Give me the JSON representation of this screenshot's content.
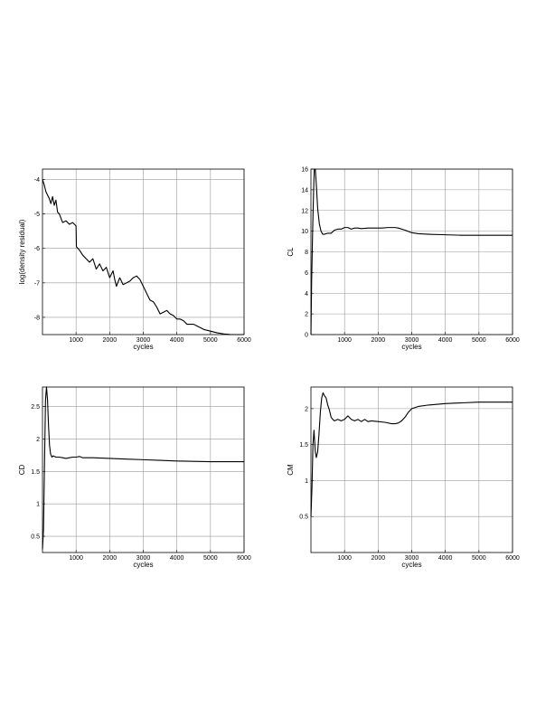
{
  "chart_data": [
    {
      "type": "line",
      "xlabel": "cycles",
      "ylabel": "log(density residual)",
      "xlim": [
        0,
        6000
      ],
      "ylim": [
        -8.5,
        -3.7
      ],
      "xticks": [
        1000,
        2000,
        3000,
        4000,
        5000,
        6000
      ],
      "yticks": [
        -8,
        -7,
        -6,
        -5,
        -4
      ],
      "grid": true,
      "series": [
        {
          "x": [
            0,
            50,
            100,
            150,
            200,
            250,
            300,
            350,
            400,
            450,
            500,
            600,
            700,
            800,
            900,
            1000,
            1010,
            1100,
            1200,
            1300,
            1400,
            1500,
            1600,
            1700,
            1800,
            1900,
            2000,
            2100,
            2150,
            2200,
            2300,
            2400,
            2500,
            2600,
            2700,
            2800,
            2900,
            3000,
            3100,
            3200,
            3300,
            3400,
            3500,
            3600,
            3700,
            3800,
            3900,
            4000,
            4100,
            4200,
            4300,
            4400,
            4500,
            4600,
            4800,
            5000,
            5200,
            5400,
            5600,
            5800,
            6000
          ],
          "values": [
            -4.0,
            -4.15,
            -4.35,
            -4.45,
            -4.55,
            -4.7,
            -4.5,
            -4.75,
            -4.6,
            -4.95,
            -5.0,
            -5.25,
            -5.2,
            -5.3,
            -5.25,
            -5.35,
            -5.95,
            -6.05,
            -6.2,
            -6.3,
            -6.4,
            -6.3,
            -6.6,
            -6.45,
            -6.65,
            -6.55,
            -6.85,
            -6.65,
            -6.9,
            -7.1,
            -6.85,
            -7.05,
            -7.0,
            -6.95,
            -6.85,
            -6.8,
            -6.9,
            -7.1,
            -7.3,
            -7.5,
            -7.55,
            -7.7,
            -7.9,
            -7.85,
            -7.8,
            -7.9,
            -7.95,
            -8.05,
            -8.05,
            -8.1,
            -8.2,
            -8.2,
            -8.2,
            -8.25,
            -8.35,
            -8.4,
            -8.45,
            -8.48,
            -8.5,
            -8.52,
            -8.55
          ]
        }
      ]
    },
    {
      "type": "line",
      "xlabel": "cycles",
      "ylabel": "CL",
      "xlim": [
        0,
        6000
      ],
      "ylim": [
        0,
        16
      ],
      "xticks": [
        1000,
        2000,
        3000,
        4000,
        5000,
        6000
      ],
      "yticks": [
        0,
        2,
        4,
        6,
        8,
        10,
        12,
        14,
        16
      ],
      "grid": true,
      "series": [
        {
          "x": [
            0,
            20,
            50,
            80,
            100,
            130,
            160,
            200,
            250,
            300,
            350,
            400,
            500,
            600,
            700,
            800,
            900,
            1000,
            1100,
            1200,
            1300,
            1400,
            1500,
            1700,
            1900,
            2100,
            2300,
            2500,
            2600,
            2800,
            3000,
            3200,
            3500,
            4000,
            4500,
            5000,
            5500,
            6000
          ],
          "values": [
            0,
            5,
            10,
            14,
            16,
            16.5,
            14.5,
            12.2,
            10.7,
            10.0,
            9.7,
            9.7,
            9.8,
            9.8,
            10.1,
            10.2,
            10.2,
            10.35,
            10.35,
            10.2,
            10.3,
            10.3,
            10.25,
            10.3,
            10.3,
            10.3,
            10.35,
            10.35,
            10.3,
            10.1,
            9.85,
            9.75,
            9.7,
            9.65,
            9.6,
            9.6,
            9.6,
            9.6
          ]
        }
      ]
    },
    {
      "type": "line",
      "xlabel": "cycles",
      "ylabel": "CD",
      "xlim": [
        0,
        6000
      ],
      "ylim": [
        0.25,
        2.8
      ],
      "xticks": [
        1000,
        2000,
        3000,
        4000,
        5000,
        6000
      ],
      "yticks": [
        0.5,
        1,
        1.5,
        2,
        2.5
      ],
      "grid": true,
      "series": [
        {
          "x": [
            0,
            30,
            60,
            90,
            120,
            150,
            180,
            210,
            240,
            280,
            320,
            400,
            500,
            600,
            700,
            800,
            900,
            1000,
            1100,
            1200,
            1500,
            2000,
            2500,
            3000,
            3500,
            4000,
            5000,
            6000
          ],
          "values": [
            0.3,
            0.6,
            1.6,
            2.6,
            2.85,
            2.6,
            2.2,
            1.9,
            1.77,
            1.72,
            1.74,
            1.72,
            1.72,
            1.71,
            1.7,
            1.71,
            1.72,
            1.72,
            1.73,
            1.71,
            1.71,
            1.7,
            1.69,
            1.68,
            1.67,
            1.66,
            1.65,
            1.65
          ]
        }
      ]
    },
    {
      "type": "line",
      "xlabel": "cycles",
      "ylabel": "CM",
      "xlim": [
        0,
        6000
      ],
      "ylim": [
        0,
        2.3
      ],
      "xticks": [
        1000,
        2000,
        3000,
        4000,
        5000,
        6000
      ],
      "yticks": [
        0.5,
        1,
        1.5,
        2
      ],
      "grid": true,
      "series": [
        {
          "x": [
            0,
            30,
            60,
            90,
            110,
            130,
            160,
            200,
            240,
            280,
            320,
            360,
            400,
            450,
            500,
            550,
            600,
            650,
            700,
            800,
            900,
            1000,
            1100,
            1200,
            1300,
            1400,
            1500,
            1600,
            1700,
            1800,
            2000,
            2200,
            2400,
            2500,
            2600,
            2700,
            2800,
            2900,
            3000,
            3200,
            3500,
            4000,
            4500,
            5000,
            5500,
            6000
          ],
          "values": [
            0.5,
            0.9,
            1.5,
            1.7,
            1.55,
            1.4,
            1.32,
            1.4,
            1.65,
            1.95,
            2.15,
            2.22,
            2.18,
            2.15,
            2.05,
            1.98,
            1.88,
            1.85,
            1.83,
            1.85,
            1.83,
            1.85,
            1.9,
            1.85,
            1.83,
            1.85,
            1.82,
            1.85,
            1.82,
            1.83,
            1.82,
            1.81,
            1.79,
            1.79,
            1.8,
            1.83,
            1.88,
            1.95,
            2.0,
            2.03,
            2.05,
            2.07,
            2.08,
            2.09,
            2.09,
            2.09
          ]
        }
      ]
    }
  ]
}
